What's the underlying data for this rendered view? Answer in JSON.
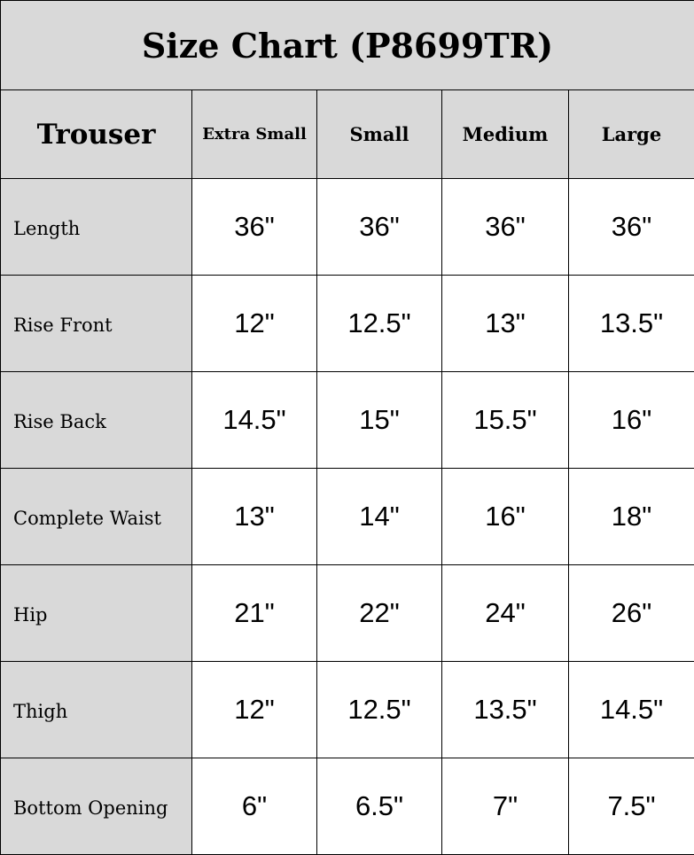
{
  "title": "Size Chart (P8699TR)",
  "header": {
    "corner": "Trouser",
    "sizes": [
      "Extra Small",
      "Small",
      "Medium",
      "Large"
    ]
  },
  "rows": [
    {
      "label": "Length",
      "values": [
        "36\"",
        "36\"",
        "36\"",
        "36\""
      ]
    },
    {
      "label": "Rise Front",
      "values": [
        "12\"",
        "12.5\"",
        "13\"",
        "13.5\""
      ]
    },
    {
      "label": "Rise Back",
      "values": [
        "14.5\"",
        "15\"",
        "15.5\"",
        "16\""
      ]
    },
    {
      "label": "Complete Waist",
      "values": [
        "13\"",
        "14\"",
        "16\"",
        "18\""
      ]
    },
    {
      "label": "Hip",
      "values": [
        "21\"",
        "22\"",
        "24\"",
        "26\""
      ]
    },
    {
      "label": "Thigh",
      "values": [
        "12\"",
        "12.5\"",
        "13.5\"",
        "14.5\""
      ]
    },
    {
      "label": "Bottom Opening",
      "values": [
        "6\"",
        "6.5\"",
        "7\"",
        "7.5\""
      ]
    }
  ],
  "colors": {
    "header_bg": "#d9d9d9",
    "cell_bg": "#ffffff",
    "border": "#000000"
  }
}
